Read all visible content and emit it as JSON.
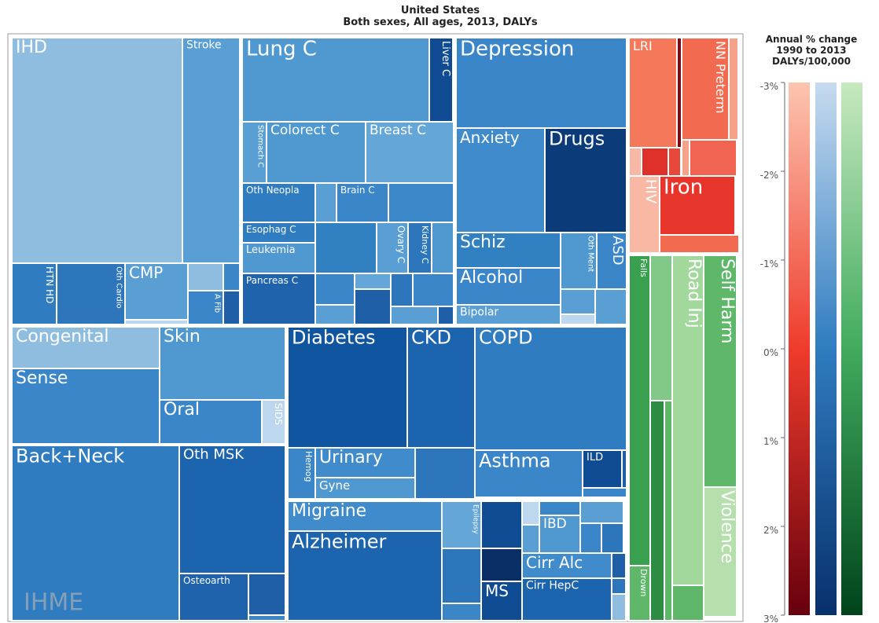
{
  "chart_data": {
    "type": "treemap",
    "title": "United States",
    "subtitle": "Both sexes, All ages, 2013, DALYs",
    "cells": [
      "IHD",
      "Stroke",
      "HTN HD",
      "Oth Cardio",
      "CMP",
      "A Fib",
      "Lung C",
      "Liver C",
      "Stomach C",
      "Colorect C",
      "Breast C",
      "Oth Neopla",
      "Brain C",
      "Esophag C",
      "Leukemia",
      "Ovary C",
      "Kidney C",
      "Pancreas C",
      "Depression",
      "Anxiety",
      "Drugs",
      "Schiz",
      "Oth Ment",
      "ASD",
      "Alcohol",
      "Bipolar",
      "Congenital",
      "Sense",
      "Skin",
      "Oral",
      "SIDS",
      "Diabetes",
      "CKD",
      "COPD",
      "Back+Neck",
      "Oth MSK",
      "Osteoarth",
      "Hemog",
      "Urinary",
      "Gyne",
      "Asthma",
      "ILD",
      "Migraine",
      "Epilepsy",
      "Alzheimer",
      "IBD",
      "Cirr Alc",
      "Cirr HepC",
      "MS",
      "LRI",
      "NN Preterm",
      "HIV",
      "Iron",
      "Falls",
      "Drown",
      "Road Inj",
      "Self Harm",
      "Violence"
    ],
    "legend": {
      "title": [
        "Annual % change",
        "1990 to 2013",
        "DALYs/100,000"
      ],
      "lim": [
        -3,
        3
      ],
      "ticks": [
        {
          "value": -3,
          "label": "-3%"
        },
        {
          "value": -2,
          "label": "-2%"
        },
        {
          "value": -1,
          "label": "-1%"
        },
        {
          "value": 0,
          "label": "0%"
        },
        {
          "value": 1,
          "label": "1%"
        },
        {
          "value": 2,
          "label": "2%"
        },
        {
          "value": 3,
          "label": "3%"
        }
      ]
    },
    "logo": "IHME"
  }
}
